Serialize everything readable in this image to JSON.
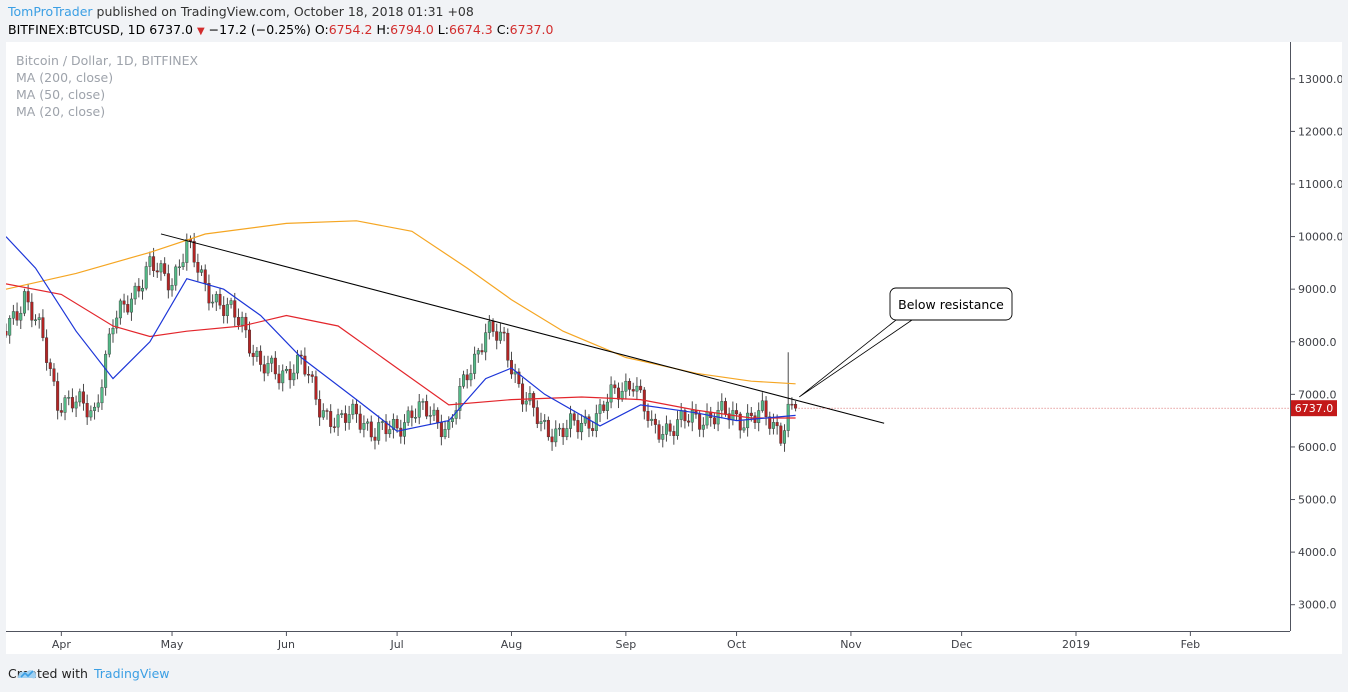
{
  "header": {
    "author": "TomProTrader",
    "published": "published on TradingView.com, October 18, 2018 01:31 +08",
    "symbol": "BITFINEX:BTCUSD, 1D",
    "last": "6737.0",
    "change": "−17.2 (−0.25%)",
    "o_label": "O:",
    "o_value": "6754.2",
    "h_label": "H:",
    "h_value": "6794.0",
    "l_label": "L:",
    "l_value": "6674.3",
    "c_label": "C:",
    "c_value": "6737.0"
  },
  "legend": {
    "title": "Bitcoin / Dollar, 1D, BITFINEX",
    "ma200": "MA (200, close)",
    "ma50": "MA (50, close)",
    "ma20": "MA (20, close)"
  },
  "footer": {
    "created": "Created with",
    "brand": "TradingView"
  },
  "colors": {
    "up": "#53b987",
    "down": "#b32424",
    "ma200": "#f5a623",
    "ma50": "#e3262c",
    "ma20": "#1d36d8",
    "price_tag": "#c31919",
    "trend": "#000000"
  },
  "chart_data": {
    "type": "candlestick",
    "title": "Bitcoin / Dollar, 1D, BITFINEX",
    "ylim": [
      2500,
      13700
    ],
    "xlim": [
      "2018-03-17",
      "2019-02-28"
    ],
    "y_ticks": [
      "3000.0",
      "4000.0",
      "5000.0",
      "6000.0",
      "7000.0",
      "8000.0",
      "9000.0",
      "10000.0",
      "11000.0",
      "12000.0",
      "13000.0"
    ],
    "x_ticks": [
      {
        "label": "Apr",
        "date": "2018-04-01"
      },
      {
        "label": "May",
        "date": "2018-05-01"
      },
      {
        "label": "Jun",
        "date": "2018-06-01"
      },
      {
        "label": "Jul",
        "date": "2018-07-01"
      },
      {
        "label": "Aug",
        "date": "2018-08-01"
      },
      {
        "label": "Sep",
        "date": "2018-09-01"
      },
      {
        "label": "Oct",
        "date": "2018-10-01"
      },
      {
        "label": "Nov",
        "date": "2018-11-01"
      },
      {
        "label": "Dec",
        "date": "2018-12-01"
      },
      {
        "label": "2019",
        "date": "2019-01-01"
      },
      {
        "label": "Feb",
        "date": "2019-02-01"
      }
    ],
    "last_price": "6737.0",
    "close_path": [
      {
        "date": "2018-03-17",
        "close": 8200
      },
      {
        "date": "2018-03-22",
        "close": 8900
      },
      {
        "date": "2018-03-27",
        "close": 8000
      },
      {
        "date": "2018-03-31",
        "close": 6900
      },
      {
        "date": "2018-04-05",
        "close": 6800
      },
      {
        "date": "2018-04-10",
        "close": 6700
      },
      {
        "date": "2018-04-15",
        "close": 8300
      },
      {
        "date": "2018-04-20",
        "close": 8900
      },
      {
        "date": "2018-04-25",
        "close": 9400
      },
      {
        "date": "2018-05-01",
        "close": 9200
      },
      {
        "date": "2018-05-05",
        "close": 9800
      },
      {
        "date": "2018-05-10",
        "close": 9100
      },
      {
        "date": "2018-05-15",
        "close": 8600
      },
      {
        "date": "2018-05-20",
        "close": 8400
      },
      {
        "date": "2018-05-25",
        "close": 7500
      },
      {
        "date": "2018-05-30",
        "close": 7400
      },
      {
        "date": "2018-06-05",
        "close": 7600
      },
      {
        "date": "2018-06-10",
        "close": 6800
      },
      {
        "date": "2018-06-15",
        "close": 6400
      },
      {
        "date": "2018-06-20",
        "close": 6700
      },
      {
        "date": "2018-06-25",
        "close": 6200
      },
      {
        "date": "2018-06-30",
        "close": 6400
      },
      {
        "date": "2018-07-05",
        "close": 6600
      },
      {
        "date": "2018-07-10",
        "close": 6700
      },
      {
        "date": "2018-07-15",
        "close": 6300
      },
      {
        "date": "2018-07-20",
        "close": 7400
      },
      {
        "date": "2018-07-25",
        "close": 8200
      },
      {
        "date": "2018-07-30",
        "close": 8000
      },
      {
        "date": "2018-08-04",
        "close": 7000
      },
      {
        "date": "2018-08-09",
        "close": 6400
      },
      {
        "date": "2018-08-14",
        "close": 6300
      },
      {
        "date": "2018-08-19",
        "close": 6400
      },
      {
        "date": "2018-08-24",
        "close": 6600
      },
      {
        "date": "2018-08-29",
        "close": 7000
      },
      {
        "date": "2018-09-03",
        "close": 7300
      },
      {
        "date": "2018-09-08",
        "close": 6300
      },
      {
        "date": "2018-09-13",
        "close": 6400
      },
      {
        "date": "2018-09-18",
        "close": 6500
      },
      {
        "date": "2018-09-23",
        "close": 6600
      },
      {
        "date": "2018-09-28",
        "close": 6600
      },
      {
        "date": "2018-10-03",
        "close": 6550
      },
      {
        "date": "2018-10-08",
        "close": 6600
      },
      {
        "date": "2018-10-13",
        "close": 6300
      },
      {
        "date": "2018-10-15",
        "close": 6700
      },
      {
        "date": "2018-10-17",
        "close": 6737
      }
    ],
    "series": [
      {
        "name": "MA (200, close)",
        "values": [
          {
            "date": "2018-03-17",
            "v": 9000
          },
          {
            "date": "2018-04-05",
            "v": 9300
          },
          {
            "date": "2018-04-25",
            "v": 9700
          },
          {
            "date": "2018-05-10",
            "v": 10050
          },
          {
            "date": "2018-06-01",
            "v": 10250
          },
          {
            "date": "2018-06-20",
            "v": 10300
          },
          {
            "date": "2018-07-05",
            "v": 10100
          },
          {
            "date": "2018-07-20",
            "v": 9400
          },
          {
            "date": "2018-08-01",
            "v": 8800
          },
          {
            "date": "2018-08-15",
            "v": 8200
          },
          {
            "date": "2018-09-01",
            "v": 7700
          },
          {
            "date": "2018-09-20",
            "v": 7400
          },
          {
            "date": "2018-10-05",
            "v": 7250
          },
          {
            "date": "2018-10-17",
            "v": 7200
          }
        ]
      },
      {
        "name": "MA (50, close)",
        "values": [
          {
            "date": "2018-03-17",
            "v": 9100
          },
          {
            "date": "2018-04-01",
            "v": 8900
          },
          {
            "date": "2018-04-15",
            "v": 8300
          },
          {
            "date": "2018-04-25",
            "v": 8100
          },
          {
            "date": "2018-05-05",
            "v": 8200
          },
          {
            "date": "2018-05-20",
            "v": 8300
          },
          {
            "date": "2018-06-01",
            "v": 8500
          },
          {
            "date": "2018-06-15",
            "v": 8300
          },
          {
            "date": "2018-07-01",
            "v": 7500
          },
          {
            "date": "2018-07-15",
            "v": 6800
          },
          {
            "date": "2018-08-01",
            "v": 6900
          },
          {
            "date": "2018-08-20",
            "v": 6950
          },
          {
            "date": "2018-09-05",
            "v": 6900
          },
          {
            "date": "2018-09-20",
            "v": 6700
          },
          {
            "date": "2018-10-05",
            "v": 6550
          },
          {
            "date": "2018-10-17",
            "v": 6550
          }
        ]
      },
      {
        "name": "MA (20, close)",
        "values": [
          {
            "date": "2018-03-17",
            "v": 10000
          },
          {
            "date": "2018-03-25",
            "v": 9400
          },
          {
            "date": "2018-04-05",
            "v": 8200
          },
          {
            "date": "2018-04-15",
            "v": 7300
          },
          {
            "date": "2018-04-25",
            "v": 8000
          },
          {
            "date": "2018-05-05",
            "v": 9200
          },
          {
            "date": "2018-05-15",
            "v": 9000
          },
          {
            "date": "2018-05-25",
            "v": 8500
          },
          {
            "date": "2018-06-05",
            "v": 7700
          },
          {
            "date": "2018-06-20",
            "v": 6900
          },
          {
            "date": "2018-07-01",
            "v": 6300
          },
          {
            "date": "2018-07-15",
            "v": 6500
          },
          {
            "date": "2018-07-25",
            "v": 7300
          },
          {
            "date": "2018-08-01",
            "v": 7500
          },
          {
            "date": "2018-08-10",
            "v": 7000
          },
          {
            "date": "2018-08-25",
            "v": 6400
          },
          {
            "date": "2018-09-05",
            "v": 6800
          },
          {
            "date": "2018-09-20",
            "v": 6650
          },
          {
            "date": "2018-10-01",
            "v": 6500
          },
          {
            "date": "2018-10-17",
            "v": 6600
          }
        ]
      }
    ],
    "trendline": {
      "from": {
        "date": "2018-04-28",
        "v": 10050
      },
      "to": {
        "date": "2018-11-10",
        "v": 6450
      }
    },
    "annotation": {
      "text": "Below resistance",
      "target": {
        "date": "2018-10-18",
        "v": 6950
      }
    },
    "grid": false,
    "legend": "top-left"
  }
}
